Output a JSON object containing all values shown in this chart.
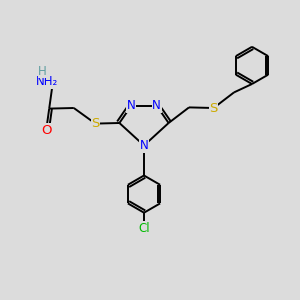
{
  "bg_color": "#dcdcdc",
  "atom_colors": {
    "N": "#0000ff",
    "S": "#ccaa00",
    "O": "#ff0000",
    "Cl": "#00bb00",
    "H_label": "#5f9ea0"
  },
  "bond_color": "#000000",
  "lw": 1.4,
  "font_size": 8.5,
  "figsize": [
    3.0,
    3.0
  ],
  "dpi": 100,
  "xlim": [
    0,
    10
  ],
  "ylim": [
    0,
    10
  ]
}
